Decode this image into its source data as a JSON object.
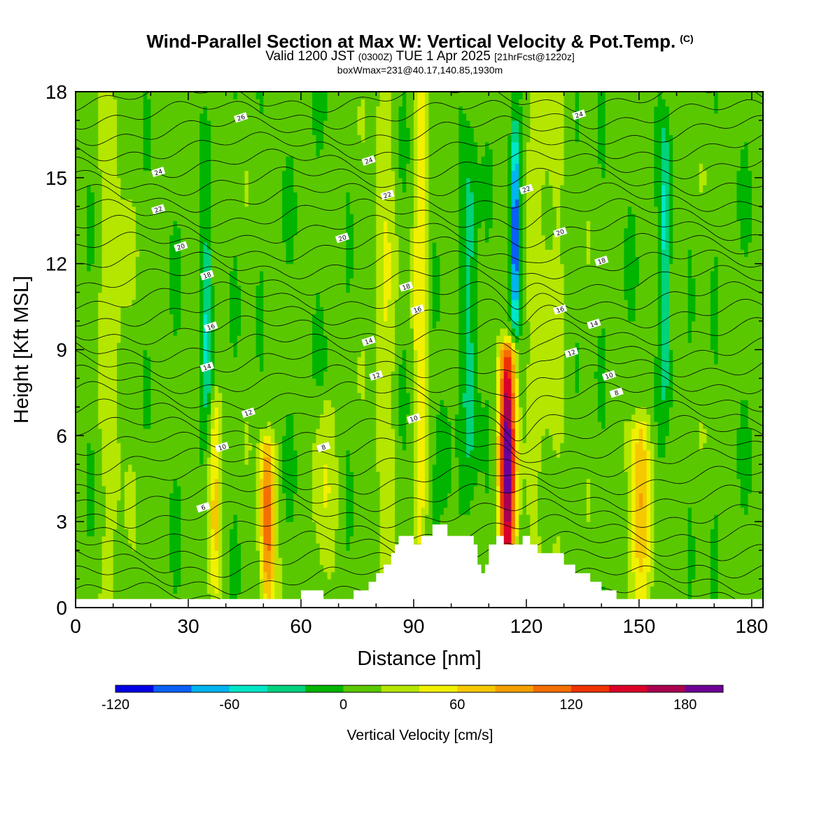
{
  "header": {
    "title": "Wind-Parallel Section at Max W: Vertical Velocity & Pot.Temp.",
    "copyright": "(C)",
    "valid_prefix": "Valid 1200 JST",
    "valid_utc": "(0300Z)",
    "valid_date": "TUE 1 Apr 2025",
    "forecast": "[21hrFcst@1220z]",
    "boxwmax": "boxWmax=231@40.17,140.85,1930m"
  },
  "colors": {
    "colorbar": [
      "#0000e6",
      "#0a5ff5",
      "#00b4f0",
      "#00e6c8",
      "#00d27d",
      "#00b400",
      "#5ac800",
      "#b4e600",
      "#f0f000",
      "#f5c800",
      "#f5a000",
      "#f56e00",
      "#f03200",
      "#dc0028",
      "#aa0050",
      "#6e0096"
    ],
    "terrain": "#ffffff",
    "contour": "#000000"
  },
  "chart_data": {
    "type": "heatmap",
    "xlabel": "Distance [nm]",
    "ylabel": "Height [Kft MSL]",
    "xlim": [
      0,
      183
    ],
    "ylim": [
      0,
      18
    ],
    "x_ticks": [
      0,
      30,
      60,
      90,
      120,
      150,
      180
    ],
    "y_ticks": [
      0,
      3,
      6,
      9,
      12,
      15,
      18
    ],
    "colorbar": {
      "label": "Vertical Velocity [cm/s]",
      "min": -120,
      "max": 200,
      "step": 20,
      "tick_values": [
        -120,
        -60,
        0,
        60,
        120,
        180
      ]
    },
    "updraft_columns": [
      {
        "x": 37,
        "w": 1.6,
        "peak": 55,
        "top": 7
      },
      {
        "x": 51,
        "w": 2.0,
        "peak": 110,
        "top": 5.5
      },
      {
        "x": 115,
        "w": 2.2,
        "peak": 180,
        "top": 8.7
      },
      {
        "x": 150,
        "w": 3.0,
        "peak": 75,
        "top": 6
      },
      {
        "x": 92,
        "w": 2.0,
        "peak": 50,
        "top": 18
      },
      {
        "x": 82,
        "w": 3.0,
        "peak": 30,
        "top": 18
      },
      {
        "x": 125,
        "w": 5.0,
        "peak": 25,
        "top": 18
      },
      {
        "x": 10,
        "w": 4.0,
        "peak": 25,
        "top": 18
      },
      {
        "x": 66,
        "w": 3.0,
        "peak": 28,
        "top": 7
      }
    ],
    "downdraft_columns": [
      {
        "x": 117,
        "w": 1.2,
        "peak": -115,
        "bottom": 9,
        "top": 17.5
      },
      {
        "x": 35,
        "w": 1.4,
        "peak": -55,
        "bottom": 6,
        "top": 14
      },
      {
        "x": 157,
        "w": 1.4,
        "peak": -55,
        "bottom": 6,
        "top": 18
      },
      {
        "x": 105,
        "w": 2.0,
        "peak": -40,
        "bottom": 2,
        "top": 18
      },
      {
        "x": 98,
        "w": 2.0,
        "peak": -35,
        "bottom": 3,
        "top": 8
      }
    ],
    "terrain": [
      {
        "x": 0,
        "h": 0.3
      },
      {
        "x": 60,
        "h": 0.3
      },
      {
        "x": 60,
        "h": 0.6
      },
      {
        "x": 66,
        "h": 0.6
      },
      {
        "x": 66,
        "h": 0.3
      },
      {
        "x": 74,
        "h": 0.3
      },
      {
        "x": 74,
        "h": 0.6
      },
      {
        "x": 78,
        "h": 0.6
      },
      {
        "x": 78,
        "h": 0.9
      },
      {
        "x": 80,
        "h": 0.9
      },
      {
        "x": 80,
        "h": 1.2
      },
      {
        "x": 82,
        "h": 1.2
      },
      {
        "x": 82,
        "h": 1.5
      },
      {
        "x": 84,
        "h": 1.5
      },
      {
        "x": 84,
        "h": 1.9
      },
      {
        "x": 85,
        "h": 1.9
      },
      {
        "x": 85,
        "h": 2.2
      },
      {
        "x": 86,
        "h": 2.2
      },
      {
        "x": 86,
        "h": 2.5
      },
      {
        "x": 90,
        "h": 2.5
      },
      {
        "x": 90,
        "h": 2.2
      },
      {
        "x": 92,
        "h": 2.2
      },
      {
        "x": 92,
        "h": 2.5
      },
      {
        "x": 95,
        "h": 2.5
      },
      {
        "x": 95,
        "h": 2.9
      },
      {
        "x": 99,
        "h": 2.9
      },
      {
        "x": 99,
        "h": 2.5
      },
      {
        "x": 106,
        "h": 2.5
      },
      {
        "x": 106,
        "h": 2.2
      },
      {
        "x": 107,
        "h": 2.2
      },
      {
        "x": 107,
        "h": 1.5
      },
      {
        "x": 108,
        "h": 1.5
      },
      {
        "x": 108,
        "h": 1.2
      },
      {
        "x": 109,
        "h": 1.2
      },
      {
        "x": 109,
        "h": 1.5
      },
      {
        "x": 110,
        "h": 1.5
      },
      {
        "x": 110,
        "h": 2.2
      },
      {
        "x": 112,
        "h": 2.2
      },
      {
        "x": 112,
        "h": 2.5
      },
      {
        "x": 114,
        "h": 2.5
      },
      {
        "x": 114,
        "h": 2.2
      },
      {
        "x": 119,
        "h": 2.2
      },
      {
        "x": 119,
        "h": 2.5
      },
      {
        "x": 121,
        "h": 2.5
      },
      {
        "x": 121,
        "h": 2.2
      },
      {
        "x": 123,
        "h": 2.2
      },
      {
        "x": 123,
        "h": 1.9
      },
      {
        "x": 130,
        "h": 1.9
      },
      {
        "x": 130,
        "h": 1.5
      },
      {
        "x": 133,
        "h": 1.5
      },
      {
        "x": 133,
        "h": 1.2
      },
      {
        "x": 137,
        "h": 1.2
      },
      {
        "x": 137,
        "h": 0.9
      },
      {
        "x": 140,
        "h": 0.9
      },
      {
        "x": 140,
        "h": 0.6
      },
      {
        "x": 144,
        "h": 0.6
      },
      {
        "x": 144,
        "h": 0.3
      },
      {
        "x": 183,
        "h": 0.3
      }
    ],
    "theta_contours": {
      "levels": [
        6,
        8,
        10,
        12,
        14,
        16,
        18,
        20,
        22,
        24,
        26
      ],
      "labels": [
        {
          "text": "6",
          "x": 34,
          "y": 3.5
        },
        {
          "text": "8",
          "x": 66,
          "y": 5.6
        },
        {
          "text": "8",
          "x": 144,
          "y": 7.5
        },
        {
          "text": "10",
          "x": 39,
          "y": 5.6
        },
        {
          "text": "10",
          "x": 90,
          "y": 6.6
        },
        {
          "text": "10",
          "x": 142,
          "y": 8.1
        },
        {
          "text": "12",
          "x": 46,
          "y": 6.8
        },
        {
          "text": "12",
          "x": 80,
          "y": 8.1
        },
        {
          "text": "12",
          "x": 132,
          "y": 8.9
        },
        {
          "text": "14",
          "x": 35,
          "y": 8.4
        },
        {
          "text": "14",
          "x": 78,
          "y": 9.3
        },
        {
          "text": "14",
          "x": 138,
          "y": 9.9
        },
        {
          "text": "16",
          "x": 36,
          "y": 9.8
        },
        {
          "text": "16",
          "x": 91,
          "y": 10.4
        },
        {
          "text": "16",
          "x": 129,
          "y": 10.4
        },
        {
          "text": "18",
          "x": 35,
          "y": 11.6
        },
        {
          "text": "18",
          "x": 88,
          "y": 11.2
        },
        {
          "text": "18",
          "x": 140,
          "y": 12.1
        },
        {
          "text": "20",
          "x": 28,
          "y": 12.6
        },
        {
          "text": "20",
          "x": 71,
          "y": 12.9
        },
        {
          "text": "20",
          "x": 129,
          "y": 13.1
        },
        {
          "text": "22",
          "x": 22,
          "y": 13.9
        },
        {
          "text": "22",
          "x": 83,
          "y": 14.4
        },
        {
          "text": "22",
          "x": 120,
          "y": 14.6
        },
        {
          "text": "24",
          "x": 22,
          "y": 15.2
        },
        {
          "text": "24",
          "x": 78,
          "y": 15.6
        },
        {
          "text": "24",
          "x": 134,
          "y": 17.2
        },
        {
          "text": "26",
          "x": 44,
          "y": 17.1
        }
      ]
    }
  }
}
